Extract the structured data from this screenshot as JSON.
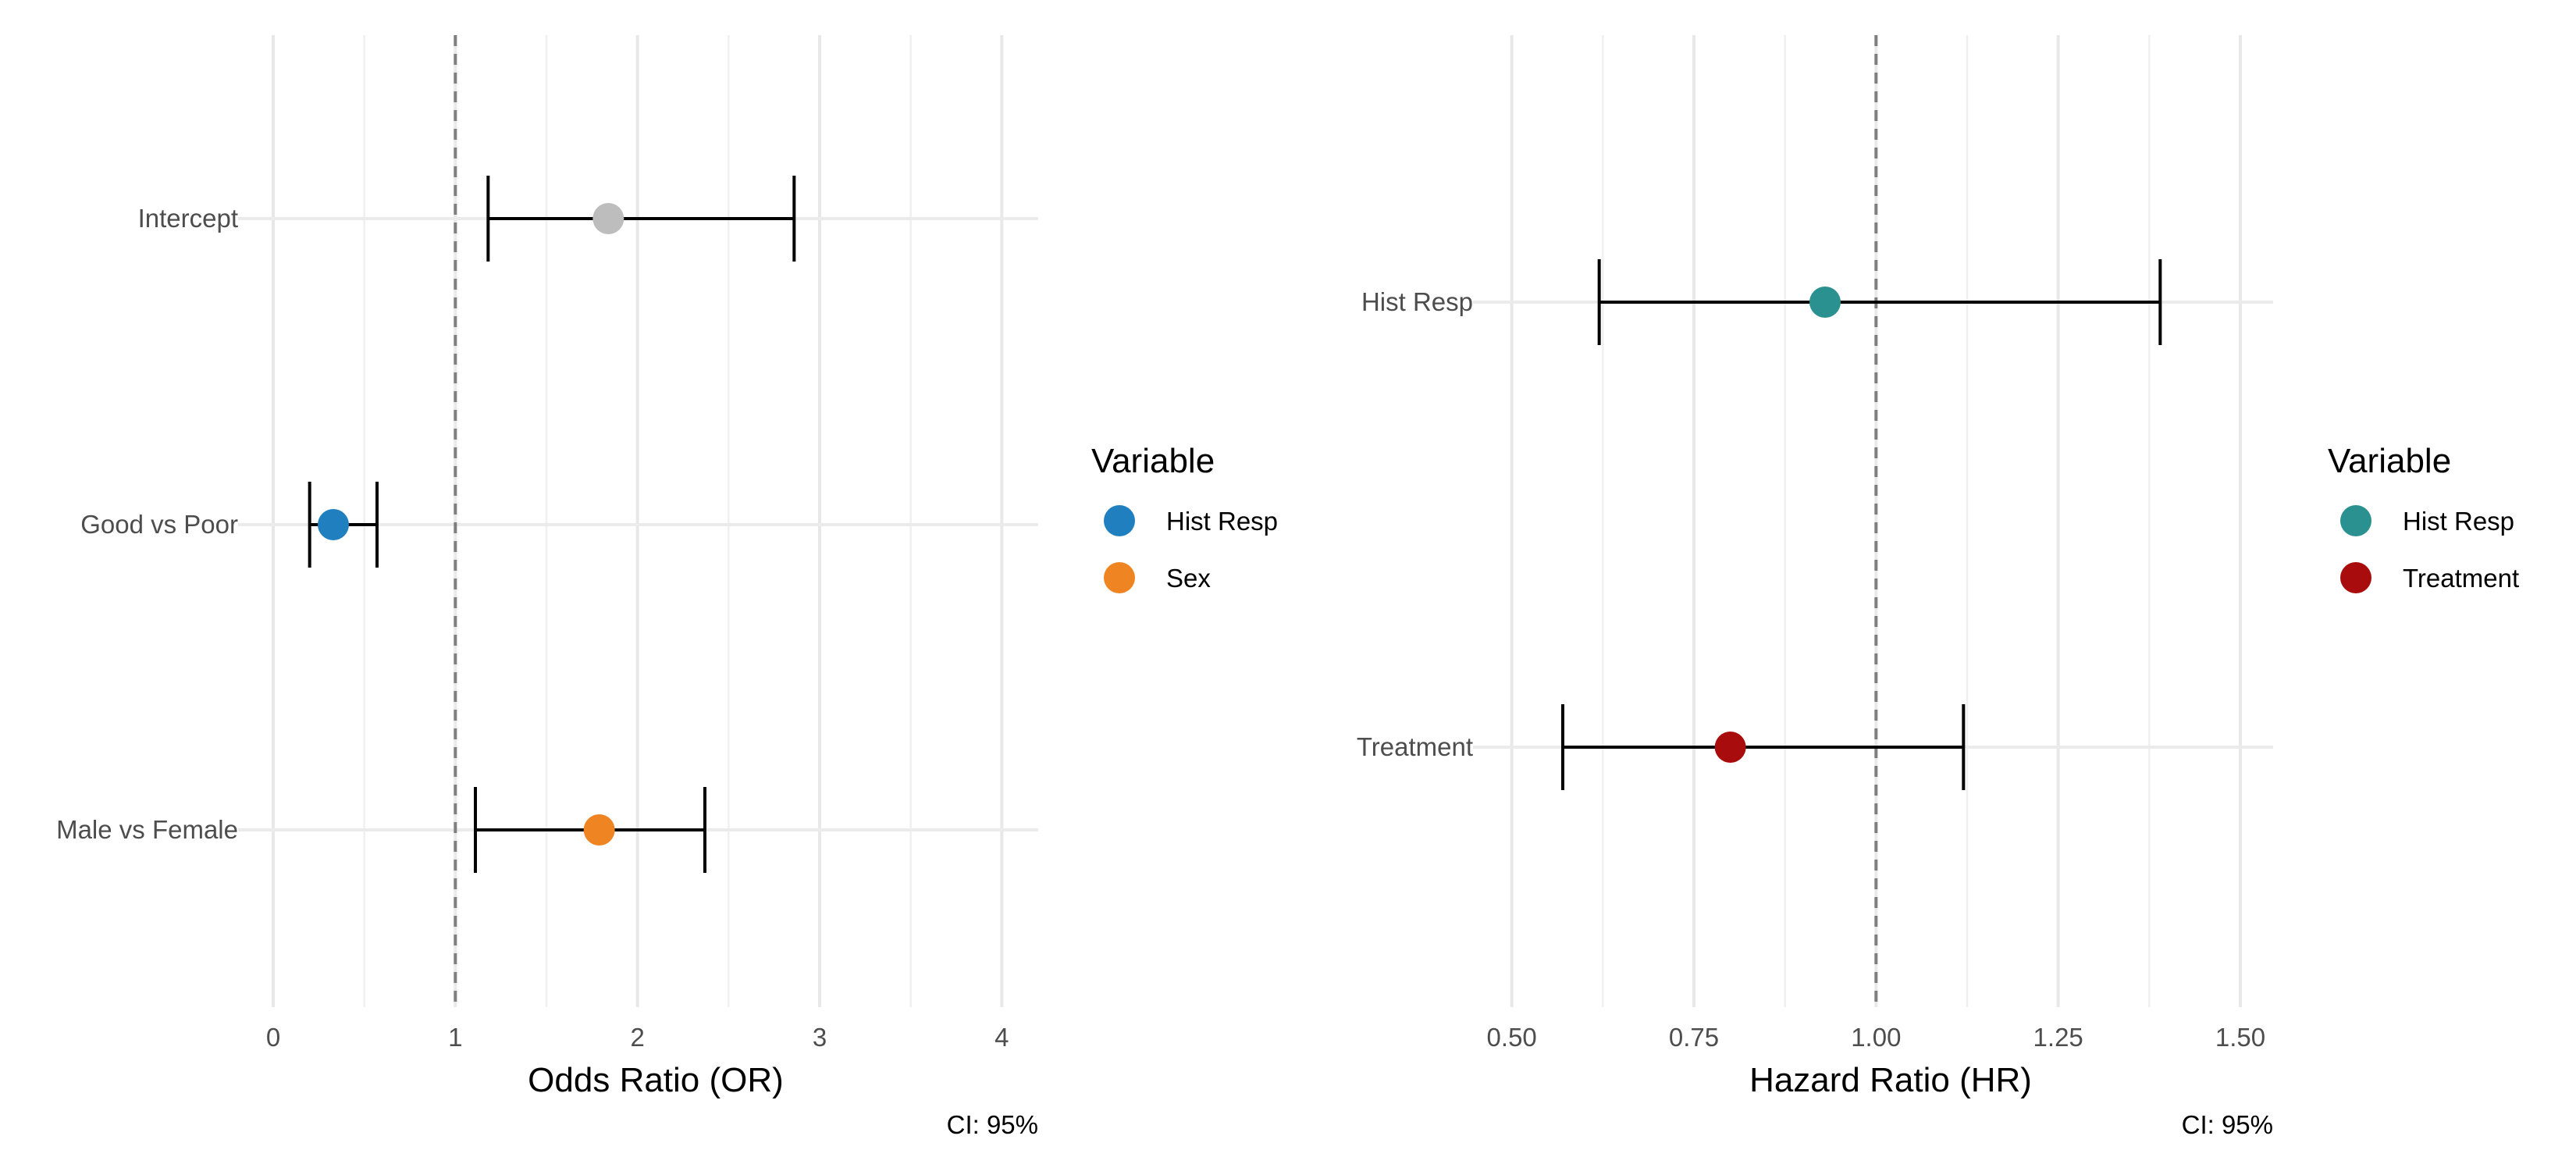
{
  "chart_data": [
    {
      "type": "forest",
      "xlabel": "Odds Ratio (OR)",
      "caption": "CI: 95%",
      "xlim": [
        0,
        4.2
      ],
      "xticks": [
        0,
        1,
        2,
        3,
        4
      ],
      "xtick_labels": [
        "0",
        "1",
        "2",
        "3",
        "4"
      ],
      "reference_line": 1,
      "categories": [
        "Intercept",
        "Good vs Poor",
        "Male vs Female"
      ],
      "points": [
        {
          "label": "Intercept",
          "estimate": 1.84,
          "lower": 1.18,
          "upper": 2.86,
          "variable": null,
          "color": "#bdbdbd"
        },
        {
          "label": "Good vs Poor",
          "estimate": 0.33,
          "lower": 0.2,
          "upper": 0.57,
          "variable": "Hist Resp",
          "color": "#1f7fbf"
        },
        {
          "label": "Male vs Female",
          "estimate": 1.79,
          "lower": 1.11,
          "upper": 2.37,
          "variable": "Sex",
          "color": "#ef8423"
        }
      ],
      "legend": {
        "title": "Variable",
        "entries": [
          {
            "label": "Hist Resp",
            "color": "#1f7fbf"
          },
          {
            "label": "Sex",
            "color": "#ef8423"
          }
        ]
      }
    },
    {
      "type": "forest",
      "xlabel": "Hazard Ratio (HR)",
      "caption": "CI: 95%",
      "xlim": [
        0.495,
        1.545
      ],
      "xticks": [
        0.5,
        0.75,
        1.0,
        1.25,
        1.5
      ],
      "xtick_labels": [
        "0.50",
        "0.75",
        "1.00",
        "1.25",
        "1.50"
      ],
      "reference_line": 1,
      "categories": [
        "Hist Resp",
        "Treatment"
      ],
      "points": [
        {
          "label": "Hist Resp",
          "estimate": 0.93,
          "lower": 0.62,
          "upper": 1.39,
          "variable": "Hist Resp",
          "color": "#2a9090"
        },
        {
          "label": "Treatment",
          "estimate": 0.8,
          "lower": 0.57,
          "upper": 1.12,
          "variable": "Treatment",
          "color": "#a80c0c"
        }
      ],
      "legend": {
        "title": "Variable",
        "entries": [
          {
            "label": "Hist Resp",
            "color": "#2a9090"
          },
          {
            "label": "Treatment",
            "color": "#a80c0c"
          }
        ]
      }
    }
  ]
}
